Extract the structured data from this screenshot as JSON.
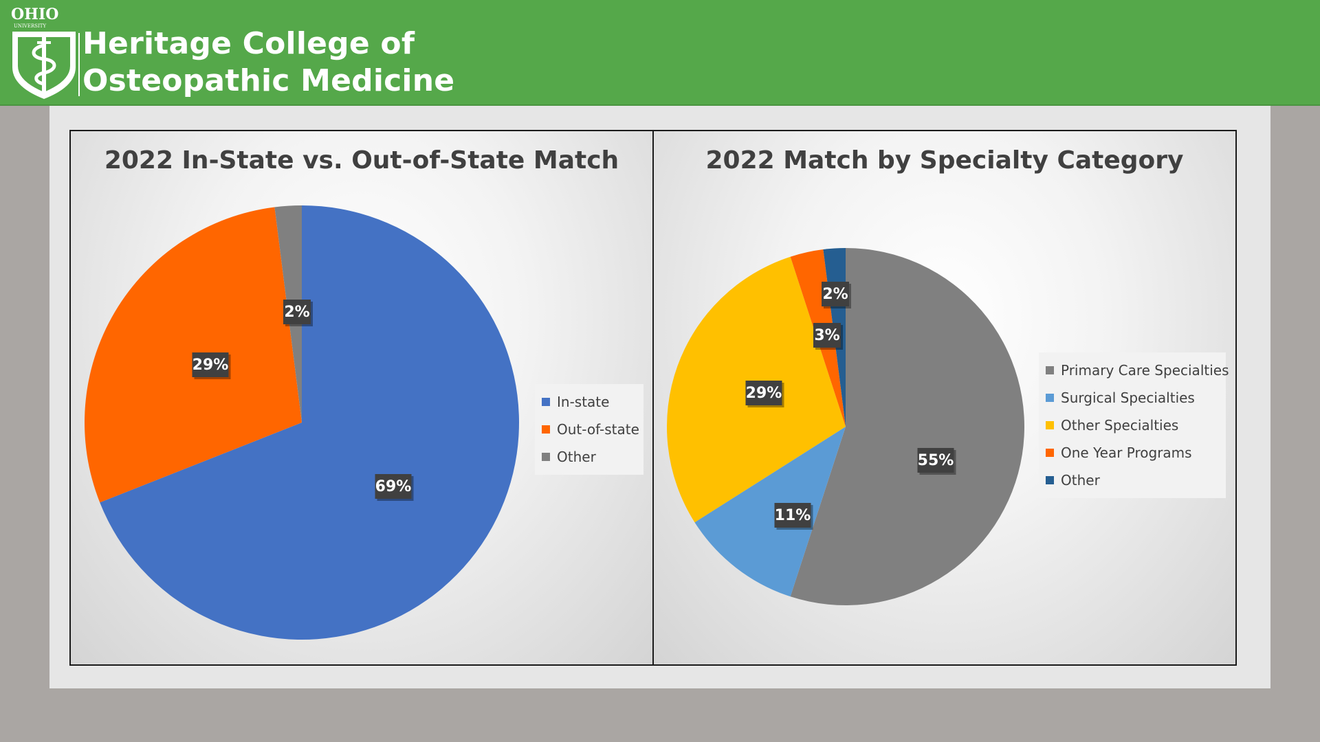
{
  "header": {
    "university": "OHIO",
    "university_sub": "UNIVERSITY",
    "title_line1": "Heritage College of",
    "title_line2": "Osteopathic Medicine"
  },
  "colors": {
    "banner": "#55a84a",
    "in_state": "#4472c4",
    "out_of_state": "#ff6600",
    "other_gray": "#808080",
    "surgical": "#5b9bd5",
    "other_specialties": "#ffc000",
    "other_blue": "#255e91"
  },
  "chart_data": [
    {
      "type": "pie",
      "title": "2022 In-State vs. Out-of-State Match",
      "categories": [
        "In-state",
        "Out-of-state",
        "Other"
      ],
      "values": [
        69,
        29,
        2
      ],
      "labels": [
        "69%",
        "29%",
        "2%"
      ],
      "colors": [
        "#4472c4",
        "#ff6600",
        "#808080"
      ],
      "legend": "right"
    },
    {
      "type": "pie",
      "title": "2022 Match by Specialty Category",
      "categories": [
        "Primary Care Specialties",
        "Surgical Specialties",
        "Other Specialties",
        "One Year Programs",
        "Other"
      ],
      "values": [
        55,
        11,
        29,
        3,
        2
      ],
      "labels": [
        "55%",
        "11%",
        "29%",
        "3%",
        "2%"
      ],
      "colors": [
        "#808080",
        "#5b9bd5",
        "#ffc000",
        "#ff6600",
        "#255e91"
      ],
      "legend": "right"
    }
  ]
}
